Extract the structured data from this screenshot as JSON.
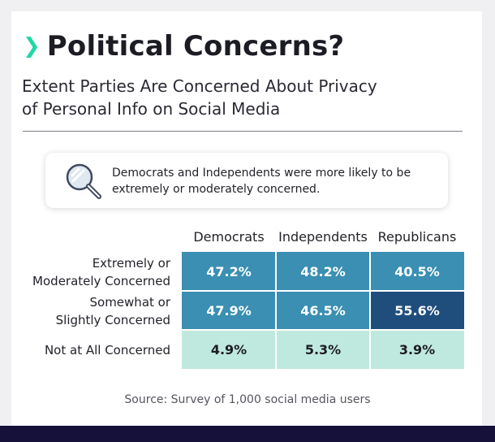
{
  "header": {
    "title": "Political Concerns?",
    "subtitle_line1": "Extent Parties Are Concerned About Privacy",
    "subtitle_line2": "of Personal Info on Social Media"
  },
  "callout": {
    "text_line1": "Democrats and Independents were more likely to be",
    "text_line2": "extremely or moderately concerned."
  },
  "chart_data": {
    "type": "table",
    "title": "Extent Parties Are Concerned About Privacy of Personal Info on Social Media",
    "columns": [
      "Democrats",
      "Independents",
      "Republicans"
    ],
    "rows": [
      {
        "label_lines": [
          "Extremely or",
          "Moderately Concerned"
        ],
        "values": [
          47.2,
          48.2,
          40.5
        ]
      },
      {
        "label_lines": [
          "Somewhat or",
          "Slightly Concerned"
        ],
        "values": [
          47.9,
          46.5,
          55.6
        ]
      },
      {
        "label_lines": [
          "Not at All Concerned"
        ],
        "values": [
          4.9,
          5.3,
          3.9
        ]
      }
    ],
    "unit": "%"
  },
  "colors": {
    "accent": "#1fd8a4",
    "cell_light": "#bfe9de",
    "cell_mid": "#3a8fb3",
    "cell_dark": "#1f4e7d"
  },
  "footer": {
    "source": "Source: Survey of 1,000 social media users"
  }
}
